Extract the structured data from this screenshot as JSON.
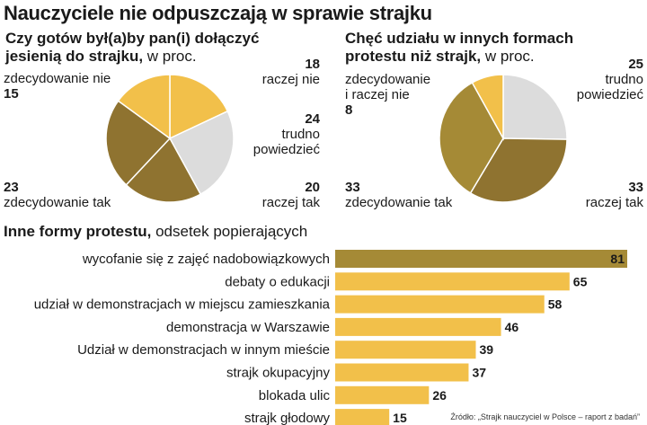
{
  "headline": "Nauczyciele nie odpuszczają w sprawie strajku",
  "colors": {
    "dark": "#a58a36",
    "medium": "#8f7330",
    "yellow": "#f2c04a",
    "gray": "#dcdcdc",
    "bar_top": "#a58a36",
    "bar": "#f2c04a"
  },
  "left_chart": {
    "title_line1": "Czy gotów był(a)by pan(i) dołączyć",
    "title_line2": "jesienią do strajku,",
    "unit": " w proc."
  },
  "right_chart": {
    "title_line1": "Chęć udziału w innych formach",
    "title_line2": "protestu niż strajk,",
    "unit": " w proc."
  },
  "bars_header": {
    "title": "Inne formy protestu,",
    "subtitle": " odsetek popierających"
  },
  "source": "Źródło: „Strajk nauczyciel w Polsce – raport z badań”",
  "chart_data": [
    {
      "type": "pie",
      "slices": [
        {
          "label": "raczej nie",
          "value": 18,
          "color": "#f2c04a"
        },
        {
          "label": "trudno powiedzieć",
          "label_lines": [
            "trudno",
            "powiedzieć"
          ],
          "value": 24,
          "color": "#dcdcdc"
        },
        {
          "label": "raczej tak",
          "value": 20,
          "color": "#8f7330"
        },
        {
          "label": "zdecydowanie tak",
          "value": 23,
          "color": "#8f7330"
        },
        {
          "label": "zdecydowanie nie",
          "value": 15,
          "color": "#f2c04a"
        }
      ]
    },
    {
      "type": "pie",
      "slices": [
        {
          "label": "trudno powiedzieć",
          "label_lines": [
            "trudno",
            "powiedzieć"
          ],
          "value": 25,
          "color": "#dcdcdc"
        },
        {
          "label": "raczej tak",
          "value": 33,
          "color": "#8f7330"
        },
        {
          "label": "zdecydowanie tak",
          "value": 33,
          "color": "#a58a36"
        },
        {
          "label": "zdecydowanie i raczej nie",
          "label_lines": [
            "zdecydowanie",
            "i raczej nie"
          ],
          "value": 8,
          "color": "#f2c04a"
        }
      ]
    },
    {
      "type": "bar",
      "orientation": "horizontal",
      "categories": [
        "wycofanie się z zajęć nadobowiązkowych",
        "debaty o edukacji",
        "udział w demonstracjach w miejscu zamieszkania",
        "demonstracja w Warszawie",
        "Udział w demonstracjach w innym mieście",
        "strajk okupacyjny",
        "blokada ulic",
        "strajk głodowy"
      ],
      "values": [
        81,
        65,
        58,
        46,
        39,
        37,
        26,
        15
      ],
      "xlim": [
        0,
        81
      ]
    }
  ]
}
